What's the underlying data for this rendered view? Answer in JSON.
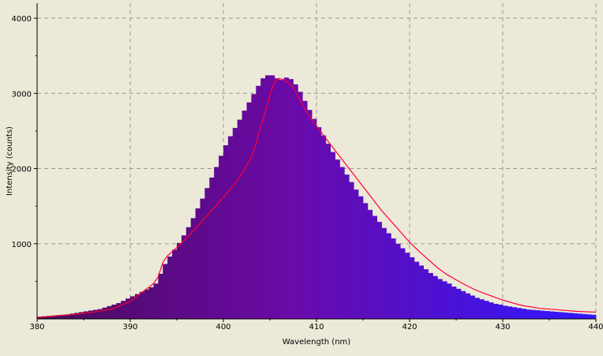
{
  "chart_data": {
    "type": "bar",
    "title": "",
    "xlabel": "Wavelength (nm)",
    "ylabel": "Intensity (counts)",
    "xlim": [
      380,
      440
    ],
    "ylim": [
      0,
      4200
    ],
    "x_ticks": [
      "380",
      "390",
      "400",
      "410",
      "420",
      "430",
      "440"
    ],
    "y_ticks": [
      "1000",
      "2000",
      "3000",
      "4000"
    ],
    "grid": true,
    "bar_width_nm": 0.5,
    "colors": {
      "background": "#ece9d8",
      "grid": "#999999",
      "bar_start": "#4a0a5a",
      "bar_mid": "#6a0aa8",
      "bar_end": "#2f17ff",
      "line": "#ff0033"
    },
    "series": [
      {
        "type": "bar",
        "x": [
          380,
          380.5,
          381,
          381.5,
          382,
          382.5,
          383,
          383.5,
          384,
          384.5,
          385,
          385.5,
          386,
          386.5,
          387,
          387.5,
          388,
          388.5,
          389,
          389.5,
          390,
          390.5,
          391,
          391.5,
          392,
          392.5,
          393,
          393.5,
          394,
          394.5,
          395,
          395.5,
          396,
          396.5,
          397,
          397.5,
          398,
          398.5,
          399,
          399.5,
          400,
          400.5,
          401,
          401.5,
          402,
          402.5,
          403,
          403.5,
          404,
          404.5,
          405,
          405.5,
          406,
          406.5,
          407,
          407.5,
          408,
          408.5,
          409,
          409.5,
          410,
          410.5,
          411,
          411.5,
          412,
          412.5,
          413,
          413.5,
          414,
          414.5,
          415,
          415.5,
          416,
          416.5,
          417,
          417.5,
          418,
          418.5,
          419,
          419.5,
          420,
          420.5,
          421,
          421.5,
          422,
          422.5,
          423,
          423.5,
          424,
          424.5,
          425,
          425.5,
          426,
          426.5,
          427,
          427.5,
          428,
          428.5,
          429,
          429.5,
          430,
          430.5,
          431,
          431.5,
          432,
          432.5,
          433,
          433.5,
          434,
          434.5,
          435,
          435.5,
          436,
          436.5,
          437,
          437.5,
          438,
          438.5,
          439,
          439.5
        ],
        "values": [
          30,
          35,
          40,
          45,
          50,
          55,
          60,
          70,
          80,
          90,
          100,
          110,
          120,
          130,
          150,
          170,
          190,
          210,
          240,
          270,
          300,
          330,
          360,
          390,
          420,
          470,
          600,
          730,
          830,
          920,
          1010,
          1110,
          1220,
          1340,
          1470,
          1600,
          1740,
          1880,
          2020,
          2170,
          2310,
          2430,
          2540,
          2650,
          2770,
          2880,
          2990,
          3100,
          3200,
          3240,
          3240,
          3200,
          3180,
          3210,
          3190,
          3120,
          3020,
          2900,
          2780,
          2660,
          2550,
          2440,
          2330,
          2220,
          2120,
          2020,
          1920,
          1820,
          1720,
          1630,
          1540,
          1450,
          1370,
          1290,
          1210,
          1140,
          1070,
          1000,
          940,
          880,
          820,
          760,
          710,
          660,
          610,
          570,
          530,
          500,
          470,
          430,
          400,
          370,
          340,
          310,
          280,
          260,
          240,
          220,
          200,
          190,
          175,
          165,
          155,
          145,
          135,
          125,
          120,
          115,
          110,
          105,
          100,
          95,
          90,
          85,
          80,
          75,
          70,
          65,
          60,
          55
        ]
      },
      {
        "type": "line",
        "x": [
          380,
          382,
          384,
          386,
          388,
          390,
          391,
          392,
          392.5,
          393,
          393.5,
          394,
          395,
          396,
          397,
          398,
          399,
          400,
          401,
          402,
          403,
          403.5,
          404,
          404.5,
          405,
          405.5,
          406,
          406.5,
          407,
          407.5,
          408,
          409,
          410,
          411,
          412,
          413,
          414,
          415,
          416,
          417,
          418,
          419,
          420,
          421,
          422,
          423,
          424,
          425,
          426,
          427,
          428,
          430,
          432,
          434,
          436,
          438,
          440
        ],
        "values": [
          20,
          40,
          60,
          90,
          130,
          230,
          330,
          420,
          470,
          560,
          750,
          840,
          950,
          1070,
          1200,
          1340,
          1480,
          1620,
          1760,
          1930,
          2150,
          2330,
          2560,
          2750,
          2980,
          3150,
          3200,
          3180,
          3140,
          3080,
          2970,
          2740,
          2570,
          2400,
          2240,
          2080,
          1920,
          1760,
          1600,
          1440,
          1300,
          1160,
          1020,
          900,
          790,
          680,
          590,
          520,
          450,
          390,
          340,
          250,
          180,
          140,
          120,
          100,
          90
        ]
      }
    ]
  }
}
